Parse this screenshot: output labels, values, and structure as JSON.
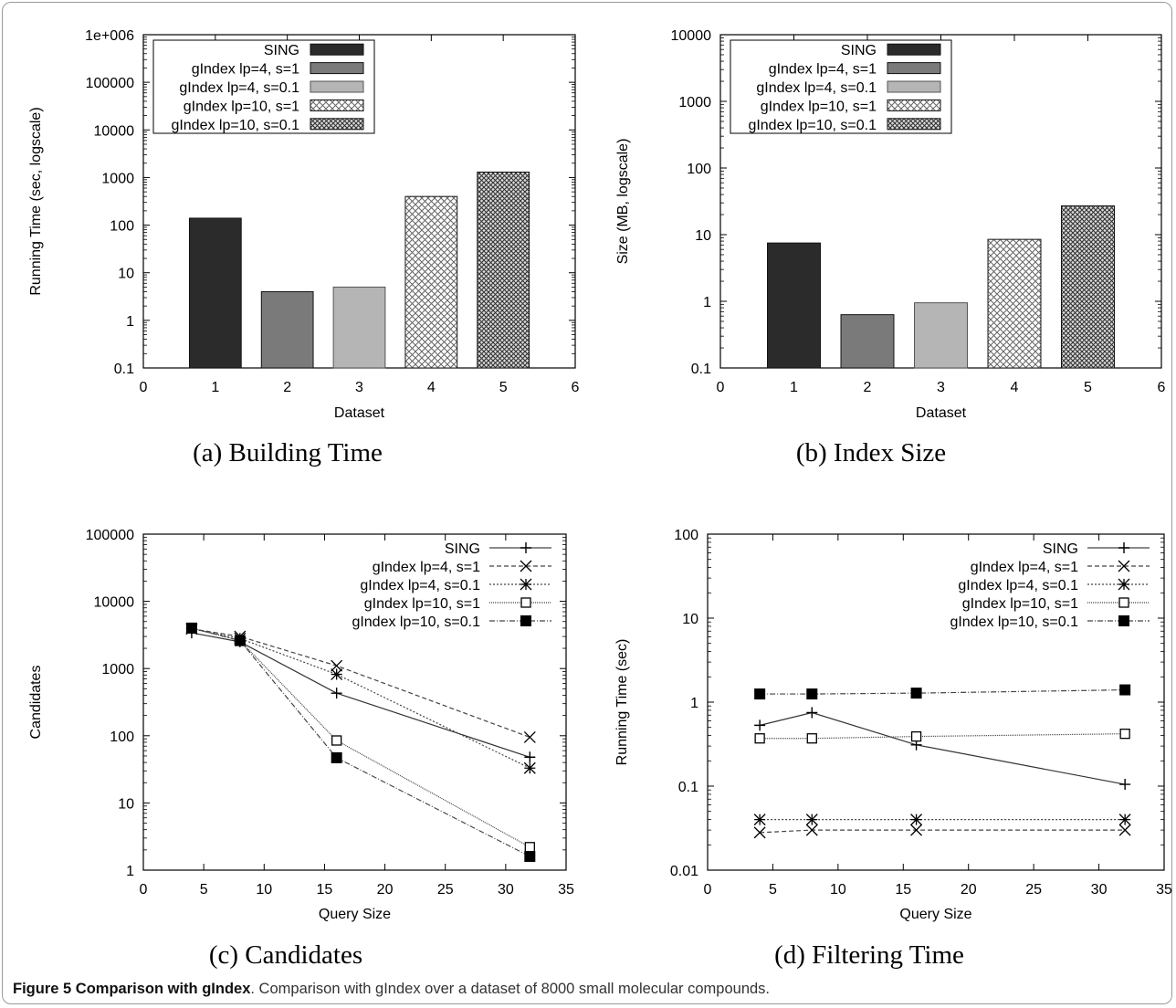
{
  "caption": {
    "label": "Figure 5",
    "title": "Comparison with gIndex",
    "text": ". Comparison with gIndex over a dataset of 8000 small molecular compounds."
  },
  "chart_data": [
    {
      "id": "a",
      "type": "bar",
      "subcaption": "(a) Building Time",
      "xlabel": "Dataset",
      "ylabel": "Running Time (sec, logscale)",
      "yscale": "log",
      "ylim": [
        0.1,
        1000000
      ],
      "xlim": [
        0,
        6
      ],
      "xticks": [
        "0",
        "1",
        "2",
        "3",
        "4",
        "5",
        "6"
      ],
      "yticks": [
        "0.1",
        "1",
        "10",
        "100",
        "1000",
        "10000",
        "100000",
        "1e+006"
      ],
      "legend_position": "top-left",
      "series": [
        {
          "name": "SING",
          "x": 1,
          "value": 140,
          "pattern": "solid-dark"
        },
        {
          "name": "gIndex lp=4, s=1",
          "x": 2,
          "value": 4,
          "pattern": "solid-mid"
        },
        {
          "name": "gIndex lp=4, s=0.1",
          "x": 3,
          "value": 5,
          "pattern": "solid-light"
        },
        {
          "name": "gIndex lp=10, s=1",
          "x": 4,
          "value": 400,
          "pattern": "cross-light"
        },
        {
          "name": "gIndex lp=10, s=0.1",
          "x": 5,
          "value": 1300,
          "pattern": "cross-dense"
        }
      ]
    },
    {
      "id": "b",
      "type": "bar",
      "subcaption": "(b) Index Size",
      "xlabel": "Dataset",
      "ylabel": "Size (MB, logscale)",
      "yscale": "log",
      "ylim": [
        0.1,
        10000
      ],
      "xlim": [
        0,
        6
      ],
      "xticks": [
        "0",
        "1",
        "2",
        "3",
        "4",
        "5",
        "6"
      ],
      "yticks": [
        "0.1",
        "1",
        "10",
        "100",
        "1000",
        "10000"
      ],
      "legend_position": "top-left",
      "series": [
        {
          "name": "SING",
          "x": 1,
          "value": 7.5,
          "pattern": "solid-dark"
        },
        {
          "name": "gIndex lp=4, s=1",
          "x": 2,
          "value": 0.63,
          "pattern": "solid-mid"
        },
        {
          "name": "gIndex lp=4, s=0.1",
          "x": 3,
          "value": 0.95,
          "pattern": "solid-light"
        },
        {
          "name": "gIndex lp=10, s=1",
          "x": 4,
          "value": 8.5,
          "pattern": "cross-light"
        },
        {
          "name": "gIndex lp=10, s=0.1",
          "x": 5,
          "value": 27,
          "pattern": "cross-dense"
        }
      ]
    },
    {
      "id": "c",
      "type": "line",
      "subcaption": "(c) Candidates",
      "xlabel": "Query Size",
      "ylabel": "Candidates",
      "yscale": "log",
      "ylim": [
        1,
        100000
      ],
      "xlim": [
        0,
        35
      ],
      "xticks": [
        "0",
        "5",
        "10",
        "15",
        "20",
        "25",
        "30",
        "35"
      ],
      "yticks": [
        "1",
        "10",
        "100",
        "1000",
        "10000",
        "100000"
      ],
      "legend_position": "top-right",
      "x": [
        4,
        8,
        16,
        32
      ],
      "series": [
        {
          "name": "SING",
          "marker": "+",
          "dash": "",
          "values": [
            3400,
            2500,
            430,
            48
          ]
        },
        {
          "name": "gIndex lp=4, s=1",
          "marker": "x",
          "dash": "5,3",
          "values": [
            3900,
            3000,
            1100,
            95
          ]
        },
        {
          "name": "gIndex lp=4, s=0.1",
          "marker": "*",
          "dash": "2,2",
          "values": [
            3900,
            2800,
            820,
            33
          ]
        },
        {
          "name": "gIndex lp=10, s=1",
          "marker": "open-square",
          "dash": "1,1",
          "values": [
            4000,
            2600,
            85,
            2.2
          ]
        },
        {
          "name": "gIndex lp=10, s=0.1",
          "marker": "filled-square",
          "dash": "6,2,1,2",
          "values": [
            4000,
            2600,
            47,
            1.6
          ]
        }
      ]
    },
    {
      "id": "d",
      "type": "line",
      "subcaption": "(d) Filtering Time",
      "xlabel": "Query Size",
      "ylabel": "Running Time (sec)",
      "yscale": "log",
      "ylim": [
        0.01,
        100
      ],
      "xlim": [
        0,
        35
      ],
      "xticks": [
        "0",
        "5",
        "10",
        "15",
        "20",
        "25",
        "30",
        "35"
      ],
      "yticks": [
        "0.01",
        "0.1",
        "1",
        "10",
        "100"
      ],
      "legend_position": "top-right",
      "x": [
        4,
        8,
        16,
        32
      ],
      "series": [
        {
          "name": "SING",
          "marker": "+",
          "dash": "",
          "values": [
            0.53,
            0.75,
            0.31,
            0.105
          ]
        },
        {
          "name": "gIndex lp=4, s=1",
          "marker": "x",
          "dash": "5,3",
          "values": [
            0.028,
            0.03,
            0.03,
            0.03
          ]
        },
        {
          "name": "gIndex lp=4, s=0.1",
          "marker": "*",
          "dash": "2,2",
          "values": [
            0.04,
            0.04,
            0.04,
            0.04
          ]
        },
        {
          "name": "gIndex lp=10, s=1",
          "marker": "open-square",
          "dash": "1,1",
          "values": [
            0.37,
            0.37,
            0.39,
            0.42
          ]
        },
        {
          "name": "gIndex lp=10, s=0.1",
          "marker": "filled-square",
          "dash": "6,2,1,2",
          "values": [
            1.25,
            1.25,
            1.28,
            1.4
          ]
        }
      ]
    }
  ]
}
